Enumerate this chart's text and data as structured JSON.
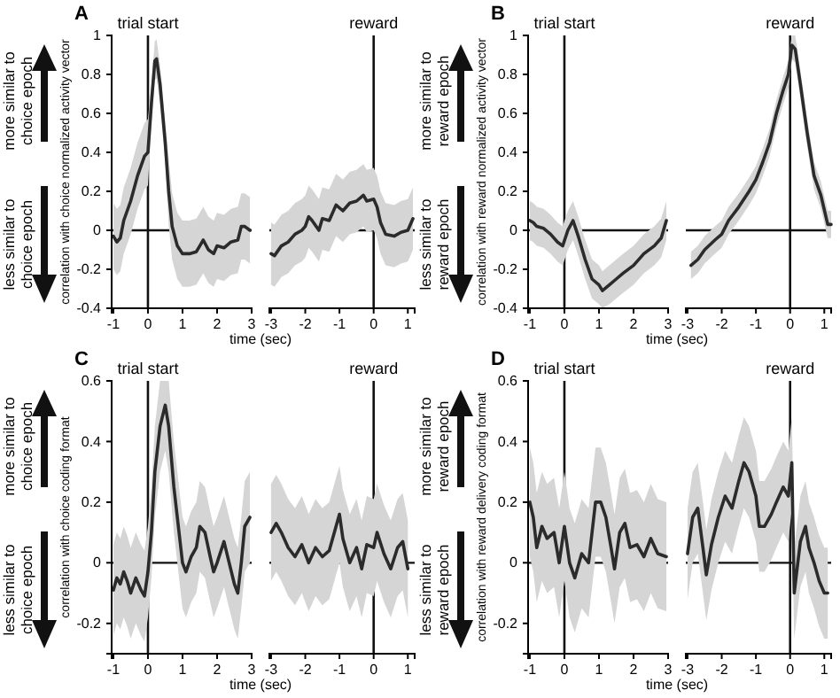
{
  "chart_data": [
    {
      "type": "line",
      "title": "A",
      "ylabel": "correlation with choice normalized activity vector",
      "xlabel": "time (sec)",
      "xlim": [
        -1.05,
        3
      ],
      "xticks": [
        -1,
        0,
        1,
        2,
        3
      ],
      "ylim": [
        -0.4,
        1
      ],
      "yticks": [
        -0.4,
        -0.2,
        0,
        0.2,
        0.4,
        0.6,
        0.8,
        1
      ],
      "annotations": [
        "more similar to choice epoch",
        "less similar to choice epoch"
      ],
      "ref_lines": [
        {
          "axis": "x",
          "value": 0,
          "label": "trial start"
        },
        {
          "axis": "y",
          "value": 0
        }
      ],
      "x": [
        -1,
        -0.9,
        -0.8,
        -0.7,
        -0.5,
        -0.3,
        -0.1,
        0,
        0.1,
        0.2,
        0.25,
        0.35,
        0.5,
        0.6,
        0.7,
        0.85,
        1,
        1.2,
        1.4,
        1.5,
        1.6,
        1.75,
        1.9,
        2,
        2.2,
        2.4,
        2.6,
        2.7,
        2.8,
        2.95
      ],
      "series": [
        {
          "color": "#2b2b2b",
          "values": [
            -0.03,
            -0.06,
            -0.04,
            0.05,
            0.15,
            0.28,
            0.38,
            0.4,
            0.65,
            0.87,
            0.88,
            0.75,
            0.45,
            0.2,
            0.02,
            -0.08,
            -0.12,
            -0.12,
            -0.11,
            -0.08,
            -0.05,
            -0.1,
            -0.12,
            -0.08,
            -0.09,
            -0.06,
            -0.05,
            0.02,
            0.02,
            0
          ],
          "lower": [
            -0.2,
            -0.23,
            -0.21,
            -0.12,
            -0.02,
            0.11,
            0.21,
            0.23,
            0.55,
            0.77,
            0.78,
            0.65,
            0.35,
            0.03,
            -0.15,
            -0.25,
            -0.29,
            -0.29,
            -0.28,
            -0.25,
            -0.22,
            -0.27,
            -0.29,
            -0.25,
            -0.26,
            -0.23,
            -0.22,
            -0.15,
            -0.15,
            -0.17
          ],
          "upper": [
            0.14,
            0.11,
            0.13,
            0.22,
            0.32,
            0.45,
            0.55,
            0.57,
            0.75,
            0.97,
            0.98,
            0.85,
            0.55,
            0.37,
            0.19,
            0.09,
            0.05,
            0.05,
            0.06,
            0.09,
            0.12,
            0.07,
            0.05,
            0.09,
            0.08,
            0.11,
            0.12,
            0.19,
            0.19,
            0.17
          ]
        }
      ]
    },
    {
      "type": "line",
      "xlim": [
        -3.05,
        1.2
      ],
      "xticks": [
        -3,
        -2,
        -1,
        0,
        1
      ],
      "ylim": [
        -0.4,
        1
      ],
      "tick_labels": "x",
      "ref_lines": [
        {
          "axis": "x",
          "value": 0,
          "label": "reward"
        },
        {
          "axis": "y",
          "value": 0
        }
      ],
      "x": [
        -3,
        -2.9,
        -2.7,
        -2.5,
        -2.3,
        -2.1,
        -2,
        -1.9,
        -1.8,
        -1.6,
        -1.5,
        -1.3,
        -1.1,
        -0.9,
        -0.7,
        -0.5,
        -0.3,
        -0.2,
        0,
        0.1,
        0.2,
        0.35,
        0.6,
        0.8,
        1,
        1.15
      ],
      "series": [
        {
          "color": "#2b2b2b",
          "values": [
            -0.12,
            -0.13,
            -0.08,
            -0.06,
            -0.02,
            0,
            0.02,
            0.07,
            0.05,
            0,
            0.06,
            0.05,
            0.13,
            0.1,
            0.14,
            0.15,
            0.18,
            0.15,
            0.16,
            0.12,
            0.04,
            -0.02,
            -0.03,
            -0.01,
            0,
            0.06
          ],
          "lower": [
            -0.28,
            -0.29,
            -0.24,
            -0.22,
            -0.18,
            -0.16,
            -0.14,
            -0.09,
            -0.11,
            -0.16,
            -0.1,
            -0.11,
            -0.03,
            -0.06,
            -0.02,
            -0.01,
            0.02,
            -0.01,
            0,
            -0.04,
            -0.12,
            -0.18,
            -0.19,
            -0.17,
            -0.16,
            -0.1
          ],
          "upper": [
            0.04,
            0.03,
            0.08,
            0.1,
            0.14,
            0.16,
            0.18,
            0.23,
            0.21,
            0.16,
            0.22,
            0.21,
            0.29,
            0.26,
            0.3,
            0.31,
            0.34,
            0.31,
            0.32,
            0.28,
            0.2,
            0.14,
            0.13,
            0.15,
            0.16,
            0.22
          ]
        }
      ]
    },
    {
      "type": "line",
      "title": "B",
      "ylabel": "correlation with reward normalized activity vector",
      "xlabel": "time (sec)",
      "xlim": [
        -1.05,
        3
      ],
      "xticks": [
        -1,
        0,
        1,
        2,
        3
      ],
      "ylim": [
        -0.4,
        1
      ],
      "yticks": [
        -0.4,
        -0.2,
        0,
        0.2,
        0.4,
        0.6,
        0.8,
        1
      ],
      "annotations": [
        "more similar to reward epoch",
        "less similar to reward epoch"
      ],
      "ref_lines": [
        {
          "axis": "x",
          "value": 0,
          "label": "trial start"
        },
        {
          "axis": "y",
          "value": 0
        }
      ],
      "x": [
        -1,
        -0.9,
        -0.8,
        -0.6,
        -0.4,
        -0.2,
        -0.05,
        0.1,
        0.25,
        0.4,
        0.6,
        0.8,
        1,
        1.1,
        1.3,
        1.5,
        1.7,
        2,
        2.3,
        2.6,
        2.8,
        2.95
      ],
      "series": [
        {
          "color": "#2b2b2b",
          "values": [
            0.05,
            0.04,
            0.02,
            0.01,
            -0.02,
            -0.06,
            -0.08,
            0,
            0.05,
            -0.03,
            -0.15,
            -0.25,
            -0.28,
            -0.31,
            -0.28,
            -0.25,
            -0.22,
            -0.18,
            -0.12,
            -0.08,
            -0.04,
            0.05
          ],
          "lower": [
            -0.05,
            -0.06,
            -0.08,
            -0.09,
            -0.12,
            -0.16,
            -0.18,
            -0.1,
            -0.05,
            -0.13,
            -0.25,
            -0.35,
            -0.38,
            -0.4,
            -0.38,
            -0.35,
            -0.32,
            -0.28,
            -0.22,
            -0.18,
            -0.14,
            -0.05
          ],
          "upper": [
            0.15,
            0.14,
            0.12,
            0.11,
            0.08,
            0.04,
            0.02,
            0.1,
            0.15,
            0.07,
            -0.05,
            -0.15,
            -0.18,
            -0.21,
            -0.18,
            -0.15,
            -0.12,
            -0.08,
            -0.02,
            0.02,
            0.06,
            0.15
          ]
        }
      ]
    },
    {
      "type": "line",
      "xlim": [
        -3.05,
        1.2
      ],
      "xticks": [
        -3,
        -2,
        -1,
        0,
        1
      ],
      "ylim": [
        -0.4,
        1
      ],
      "tick_labels": "x",
      "ref_lines": [
        {
          "axis": "x",
          "value": 0,
          "label": "reward"
        },
        {
          "axis": "y",
          "value": 0
        }
      ],
      "x": [
        -2.9,
        -2.7,
        -2.5,
        -2.2,
        -2,
        -1.8,
        -1.5,
        -1.2,
        -1,
        -0.8,
        -0.6,
        -0.4,
        -0.2,
        -0.05,
        0.05,
        0.15,
        0.3,
        0.5,
        0.7,
        0.9,
        1.1,
        1.2
      ],
      "series": [
        {
          "color": "#2b2b2b",
          "values": [
            -0.18,
            -0.15,
            -0.1,
            -0.05,
            -0.02,
            0.05,
            0.12,
            0.2,
            0.26,
            0.35,
            0.45,
            0.6,
            0.72,
            0.8,
            0.95,
            0.93,
            0.75,
            0.5,
            0.28,
            0.18,
            0.03,
            0.03
          ],
          "lower": [
            -0.25,
            -0.22,
            -0.17,
            -0.12,
            -0.09,
            -0.02,
            0.05,
            0.13,
            0.19,
            0.28,
            0.38,
            0.53,
            0.65,
            0.73,
            0.88,
            0.86,
            0.68,
            0.43,
            0.21,
            0.11,
            -0.04,
            -0.04
          ],
          "upper": [
            -0.11,
            -0.08,
            -0.03,
            0.02,
            0.05,
            0.12,
            0.19,
            0.27,
            0.33,
            0.42,
            0.52,
            0.67,
            0.79,
            0.87,
            1,
            1,
            0.82,
            0.57,
            0.35,
            0.25,
            0.1,
            0.1
          ]
        }
      ]
    },
    {
      "type": "line",
      "title": "C",
      "ylabel": "correlation with choice coding format",
      "xlabel": "time (sec)",
      "xlim": [
        -1.05,
        3
      ],
      "xticks": [
        -1,
        0,
        1,
        2,
        3
      ],
      "ylim": [
        -0.3,
        0.6
      ],
      "yticks": [
        -0.2,
        0,
        0.2,
        0.4,
        0.6
      ],
      "annotations": [
        "more similar to choice epoch",
        "less similar to choice epoch"
      ],
      "ref_lines": [
        {
          "axis": "x",
          "value": 0,
          "label": "trial start"
        },
        {
          "axis": "y",
          "value": 0
        }
      ],
      "x": [
        -1,
        -0.9,
        -0.8,
        -0.7,
        -0.6,
        -0.5,
        -0.35,
        -0.2,
        -0.1,
        0,
        0.1,
        0.2,
        0.35,
        0.5,
        0.6,
        0.75,
        0.9,
        1,
        1.1,
        1.25,
        1.4,
        1.5,
        1.65,
        1.8,
        1.9,
        2,
        2.2,
        2.35,
        2.5,
        2.6,
        2.7,
        2.8,
        2.95
      ],
      "series": [
        {
          "color": "#2b2b2b",
          "values": [
            -0.09,
            -0.05,
            -0.07,
            -0.03,
            -0.06,
            -0.1,
            -0.05,
            -0.09,
            -0.11,
            -0.03,
            0.1,
            0.3,
            0.45,
            0.52,
            0.45,
            0.25,
            0.1,
            0,
            -0.03,
            0.02,
            0.05,
            0.12,
            0.1,
            0.02,
            -0.03,
            0,
            0.07,
            0,
            -0.07,
            -0.1,
            0,
            0.12,
            0.15
          ],
          "lower": [
            -0.24,
            -0.2,
            -0.22,
            -0.18,
            -0.21,
            -0.25,
            -0.2,
            -0.24,
            -0.26,
            -0.18,
            -0.05,
            0.15,
            0.3,
            0.37,
            0.3,
            0.1,
            -0.05,
            -0.15,
            -0.18,
            -0.13,
            -0.1,
            -0.03,
            -0.05,
            -0.13,
            -0.18,
            -0.15,
            -0.08,
            -0.15,
            -0.22,
            -0.25,
            -0.15,
            -0.03,
            0
          ],
          "upper": [
            0.06,
            0.1,
            0.08,
            0.12,
            0.09,
            0.05,
            0.1,
            0.06,
            0.04,
            0.12,
            0.25,
            0.45,
            0.6,
            0.6,
            0.6,
            0.4,
            0.25,
            0.15,
            0.12,
            0.17,
            0.2,
            0.27,
            0.25,
            0.17,
            0.12,
            0.15,
            0.22,
            0.15,
            0.08,
            0.05,
            0.15,
            0.27,
            0.3
          ]
        }
      ]
    },
    {
      "type": "line",
      "xlim": [
        -3.05,
        1.2
      ],
      "xticks": [
        -3,
        -2,
        -1,
        0,
        1
      ],
      "ylim": [
        -0.3,
        0.6
      ],
      "tick_labels": "x",
      "ref_lines": [
        {
          "axis": "x",
          "value": 0,
          "label": "reward"
        },
        {
          "axis": "y",
          "value": 0
        }
      ],
      "x": [
        -3,
        -2.85,
        -2.7,
        -2.5,
        -2.3,
        -2.1,
        -1.9,
        -1.7,
        -1.5,
        -1.3,
        -1.1,
        -1,
        -0.9,
        -0.7,
        -0.5,
        -0.35,
        -0.2,
        0,
        0.1,
        0.3,
        0.5,
        0.7,
        0.85,
        1
      ],
      "series": [
        {
          "color": "#2b2b2b",
          "values": [
            0.1,
            0.13,
            0.1,
            0.05,
            0.02,
            0.06,
            0,
            0.05,
            0.02,
            0.04,
            0.12,
            0.16,
            0.08,
            0,
            0.05,
            -0.02,
            0.06,
            0.05,
            0.1,
            0.03,
            -0.02,
            0.05,
            0.07,
            -0.02
          ],
          "lower": [
            -0.06,
            -0.03,
            -0.06,
            -0.11,
            -0.14,
            -0.1,
            -0.16,
            -0.11,
            -0.14,
            -0.12,
            -0.04,
            0,
            -0.08,
            -0.16,
            -0.11,
            -0.18,
            -0.1,
            -0.11,
            -0.06,
            -0.13,
            -0.18,
            -0.11,
            -0.09,
            -0.18
          ],
          "upper": [
            0.26,
            0.29,
            0.26,
            0.21,
            0.18,
            0.22,
            0.16,
            0.21,
            0.18,
            0.2,
            0.28,
            0.32,
            0.24,
            0.16,
            0.21,
            0.14,
            0.22,
            0.21,
            0.26,
            0.19,
            0.14,
            0.21,
            0.23,
            0.14
          ]
        }
      ]
    },
    {
      "type": "line",
      "title": "D",
      "ylabel": "correlation with reward delivery coding format",
      "xlabel": "time (sec)",
      "xlim": [
        -1.05,
        3
      ],
      "xticks": [
        -1,
        0,
        1,
        2,
        3
      ],
      "ylim": [
        -0.3,
        0.6
      ],
      "yticks": [
        -0.2,
        0,
        0.2,
        0.4,
        0.6
      ],
      "annotations": [
        "more similar to reward epoch",
        "less similar to reward epoch"
      ],
      "ref_lines": [
        {
          "axis": "x",
          "value": 0,
          "label": "trial start"
        },
        {
          "axis": "y",
          "value": 0
        }
      ],
      "x": [
        -1,
        -0.9,
        -0.8,
        -0.65,
        -0.5,
        -0.3,
        -0.15,
        0,
        0.15,
        0.3,
        0.5,
        0.7,
        0.9,
        1.05,
        1.2,
        1.35,
        1.45,
        1.6,
        1.75,
        1.9,
        2.1,
        2.3,
        2.5,
        2.7,
        2.95
      ],
      "series": [
        {
          "color": "#2b2b2b",
          "values": [
            0.2,
            0.15,
            0.05,
            0.12,
            0.08,
            0.1,
            0,
            0.12,
            0,
            -0.05,
            0.03,
            0,
            0.2,
            0.2,
            0.15,
            0.05,
            -0.02,
            0.1,
            0.13,
            0.05,
            0.06,
            0.02,
            0.08,
            0.03,
            0.02
          ],
          "lower": [
            0.02,
            -0.03,
            -0.13,
            -0.06,
            -0.1,
            -0.08,
            -0.18,
            -0.06,
            -0.18,
            -0.23,
            -0.15,
            -0.18,
            0.02,
            0.02,
            -0.03,
            -0.13,
            -0.2,
            -0.08,
            -0.05,
            -0.13,
            -0.12,
            -0.16,
            -0.1,
            -0.15,
            -0.16
          ],
          "upper": [
            0.38,
            0.33,
            0.23,
            0.3,
            0.26,
            0.28,
            0.18,
            0.3,
            0.18,
            0.13,
            0.21,
            0.18,
            0.38,
            0.38,
            0.33,
            0.23,
            0.16,
            0.28,
            0.31,
            0.23,
            0.24,
            0.2,
            0.26,
            0.21,
            0.2
          ]
        }
      ]
    },
    {
      "type": "line",
      "xlim": [
        -3.05,
        1.2
      ],
      "xticks": [
        -3,
        -2,
        -1,
        0,
        1
      ],
      "ylim": [
        -0.3,
        0.6
      ],
      "tick_labels": "x",
      "ref_lines": [
        {
          "axis": "x",
          "value": 0,
          "label": "reward"
        },
        {
          "axis": "y",
          "value": 0
        }
      ],
      "x": [
        -3,
        -2.85,
        -2.7,
        -2.55,
        -2.45,
        -2.3,
        -2.1,
        -1.9,
        -1.7,
        -1.5,
        -1.35,
        -1.2,
        -1,
        -0.9,
        -0.75,
        -0.55,
        -0.4,
        -0.2,
        -0.05,
        0.05,
        0.12,
        0.3,
        0.45,
        0.55,
        0.7,
        0.85,
        1,
        1.1
      ],
      "series": [
        {
          "color": "#2b2b2b",
          "values": [
            0.03,
            0.15,
            0.18,
            0.05,
            -0.04,
            0.06,
            0.15,
            0.22,
            0.18,
            0.27,
            0.33,
            0.3,
            0.22,
            0.12,
            0.12,
            0.16,
            0.2,
            0.25,
            0.22,
            0.33,
            -0.1,
            0.07,
            0.12,
            0.05,
            0,
            -0.06,
            -0.1,
            -0.1
          ],
          "lower": [
            -0.12,
            0,
            0.03,
            -0.1,
            -0.19,
            -0.09,
            0,
            0.07,
            0.03,
            0.12,
            0.18,
            0.15,
            0.07,
            -0.03,
            -0.03,
            0.01,
            0.05,
            0.1,
            0.07,
            0.18,
            -0.25,
            -0.08,
            -0.03,
            -0.1,
            -0.15,
            -0.21,
            -0.25,
            -0.25
          ],
          "upper": [
            0.18,
            0.3,
            0.33,
            0.2,
            0.11,
            0.21,
            0.3,
            0.37,
            0.33,
            0.42,
            0.48,
            0.45,
            0.37,
            0.27,
            0.27,
            0.31,
            0.35,
            0.4,
            0.37,
            0.48,
            0.05,
            0.22,
            0.27,
            0.2,
            0.15,
            0.09,
            0.05,
            0.05
          ]
        }
      ]
    }
  ]
}
